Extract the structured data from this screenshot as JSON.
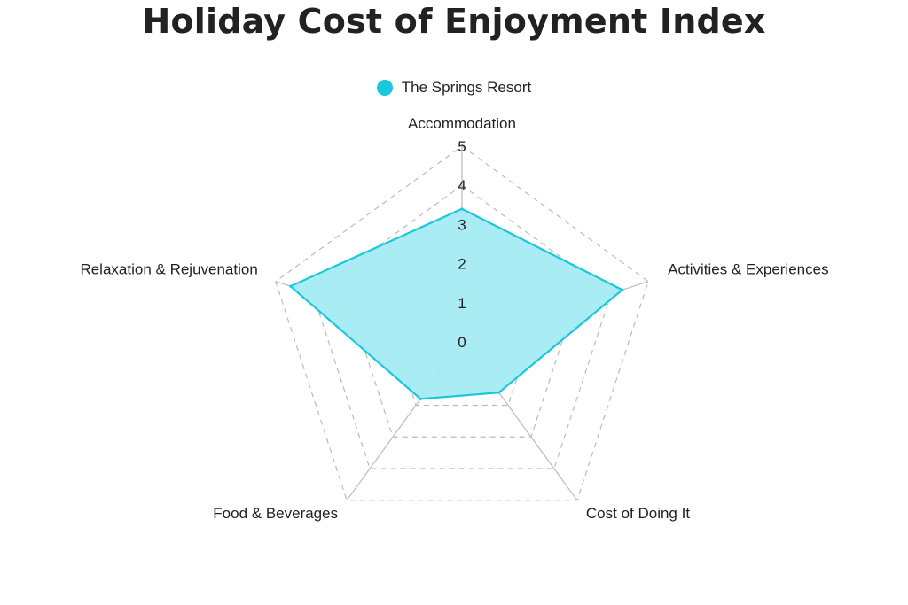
{
  "chart_data": {
    "type": "radar",
    "title": "Holiday Cost of Enjoyment Index",
    "axes": [
      "Accommodation",
      "Activities & Experiences",
      "Cost of Doing It",
      "Food & Beverages",
      "Relaxation & Rejuvenation"
    ],
    "ticks": [
      "0",
      "1",
      "2",
      "3",
      "4",
      "5"
    ],
    "range": [
      0,
      5
    ],
    "series": [
      {
        "name": "The Springs Resort",
        "values": [
          3.4,
          4.3,
          1.6,
          1.8,
          4.6
        ]
      }
    ],
    "legend_position": "top",
    "grid": "dashed"
  },
  "colors": {
    "series": "#18c8dc",
    "fill": "#a4ebf2",
    "grid": "#bbbbbb",
    "spoke": "#bbbbbb"
  }
}
